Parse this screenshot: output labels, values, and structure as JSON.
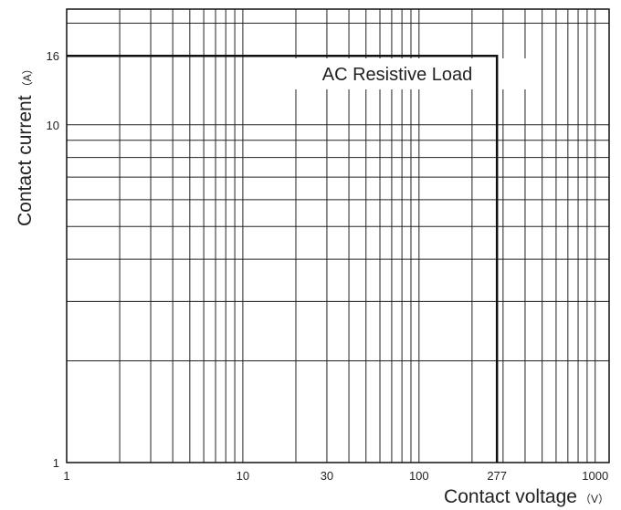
{
  "chart_data": {
    "type": "line",
    "title": "",
    "annotation": "AC Resistive Load",
    "xlabel": {
      "text": "Contact voltage",
      "unit": "（V）"
    },
    "ylabel": {
      "text": "Contact current",
      "unit": "（A）"
    },
    "x_scale": "log",
    "y_scale": "log",
    "xlim": [
      1,
      1200
    ],
    "ylim": [
      1,
      22
    ],
    "x_ticks": [
      {
        "value": 1,
        "label": "1"
      },
      {
        "value": 10,
        "label": "10"
      },
      {
        "value": 30,
        "label": "30"
      },
      {
        "value": 100,
        "label": "100"
      },
      {
        "value": 277,
        "label": "277"
      },
      {
        "value": 1000,
        "label": "1000"
      }
    ],
    "y_ticks": [
      {
        "value": 1,
        "label": "1"
      },
      {
        "value": 10,
        "label": "10"
      },
      {
        "value": 16,
        "label": "16"
      }
    ],
    "grid": true,
    "series": [
      {
        "x": [
          1,
          277,
          277
        ],
        "y": [
          16,
          16,
          1
        ],
        "color": "#111111"
      }
    ]
  }
}
